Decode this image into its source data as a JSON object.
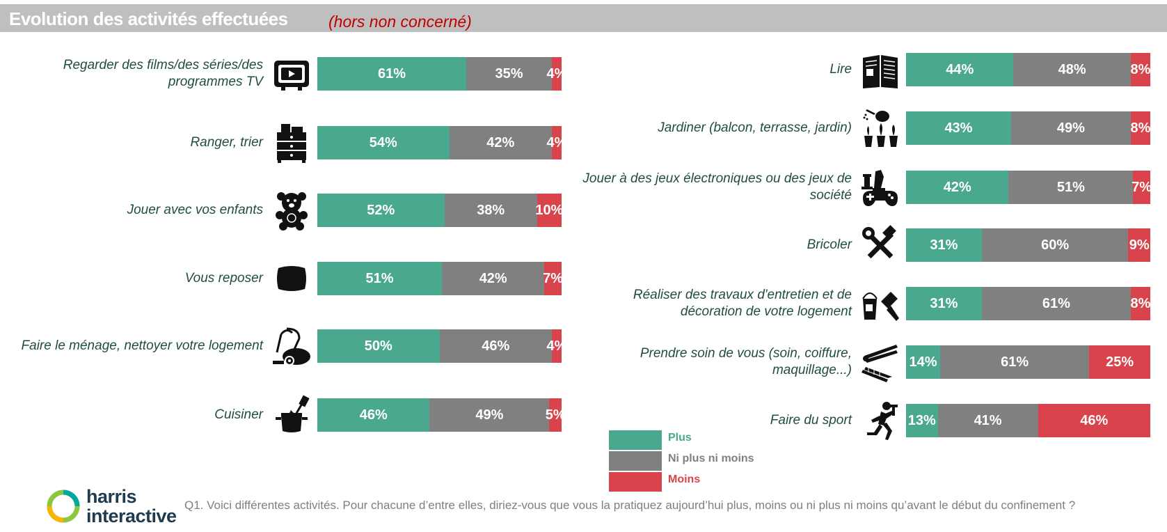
{
  "title": "Evolution des activités effectuées",
  "subtitle": "(hors non concerné)",
  "colors": {
    "plus": "#4aa88e",
    "neutre": "#808080",
    "moins": "#d9434b"
  },
  "chart_data": {
    "type": "bar",
    "orientation": "horizontal",
    "stacked": true,
    "series_names": [
      "Plus",
      "Ni plus ni moins",
      "Moins"
    ],
    "left": [
      {
        "label": "Regarder des films/des séries/des programmes TV",
        "icon": "tv-icon",
        "values": [
          61,
          35,
          4
        ]
      },
      {
        "label": "Ranger, trier",
        "icon": "drawer-icon",
        "values": [
          54,
          42,
          4
        ]
      },
      {
        "label": "Jouer avec vos enfants",
        "icon": "teddy-bear-icon",
        "values": [
          52,
          38,
          10
        ]
      },
      {
        "label": "Vous reposer",
        "icon": "pillow-icon",
        "values": [
          51,
          42,
          7
        ]
      },
      {
        "label": "Faire le ménage, nettoyer votre logement",
        "icon": "vacuum-icon",
        "values": [
          50,
          46,
          4
        ]
      },
      {
        "label": "Cuisiner",
        "icon": "cooking-pot-icon",
        "values": [
          46,
          49,
          5
        ]
      }
    ],
    "right": [
      {
        "label": "Lire",
        "icon": "book-icon",
        "values": [
          44,
          48,
          8
        ]
      },
      {
        "label": "Jardiner (balcon, terrasse, jardin)",
        "icon": "watering-can-icon",
        "values": [
          43,
          49,
          8
        ]
      },
      {
        "label": "Jouer à des jeux électroniques ou des jeux de société",
        "icon": "gamepad-chess-icon",
        "values": [
          42,
          51,
          7
        ]
      },
      {
        "label": "Bricoler",
        "icon": "tools-icon",
        "values": [
          31,
          60,
          9
        ]
      },
      {
        "label": "Réaliser des travaux d'entretien et de décoration de votre logement",
        "icon": "paint-icon",
        "values": [
          31,
          61,
          8
        ]
      },
      {
        "label": "Prendre soin de vous (soin, coiffure, maquillage...)",
        "icon": "hair-tools-icon",
        "values": [
          14,
          61,
          25
        ]
      },
      {
        "label": "Faire du sport",
        "icon": "runner-icon",
        "values": [
          13,
          41,
          46
        ]
      }
    ]
  },
  "legend": [
    {
      "label": "Plus",
      "color": "#4aa88e"
    },
    {
      "label": "Ni plus ni moins",
      "color": "#808080"
    },
    {
      "label": "Moins",
      "color": "#d9434b"
    }
  ],
  "logo": {
    "line1": "harris",
    "line2": "interactive"
  },
  "question": "Q1. Voici différentes activités. Pour chacune d’entre elles, diriez-vous que vous la pratiquez aujourd’hui plus, moins ou ni plus ni moins qu’avant le début du confinement ?"
}
